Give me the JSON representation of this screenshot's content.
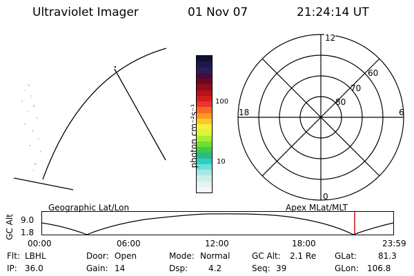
{
  "header": {
    "title": "Ultraviolet Imager",
    "date": "01 Nov 07",
    "time": "21:24:14 UT"
  },
  "colorbar": {
    "unit_label": "photon cm⁻²s⁻¹",
    "ticks": [
      "100",
      "10"
    ],
    "colors": [
      "#111133",
      "#1a1a4a",
      "#2a2058",
      "#4a0a3a",
      "#6e0626",
      "#930d1a",
      "#b5121a",
      "#d41e1e",
      "#ee3333",
      "#f86a26",
      "#fb9a1e",
      "#fbc826",
      "#f5ee3c",
      "#ddf239",
      "#a6ee2e",
      "#6ee032",
      "#3ecc46",
      "#2eb888",
      "#28d2c2",
      "#6be0d8",
      "#a8e8e4",
      "#cfeeea",
      "#e6f3f1",
      "#f4f8f7"
    ]
  },
  "polar_plot": {
    "clock_labels": {
      "top": "12",
      "left": "18",
      "right": "6",
      "bottom": "0"
    },
    "lat_labels": [
      "60",
      "70",
      "80"
    ]
  },
  "timeline": {
    "left_label": "Geographic Lat/Lon",
    "right_label": "Apex MLat/MLT",
    "axis_title": "GC Alt",
    "y_ticks": [
      "9.0",
      "1.8"
    ],
    "x_ticks": [
      "00:00",
      "06:00",
      "12:00",
      "18:00",
      "23:59"
    ],
    "marker_color": "#cc0000"
  },
  "status": {
    "flt_label": "Flt:",
    "flt_value": "LBHL",
    "ip_label": "IP:",
    "ip_value": "36.0",
    "door_label": "Door:",
    "door_value": "Open",
    "gain_label": "Gain:",
    "gain_value": "14",
    "mode_label": "Mode:",
    "mode_value": "Normal",
    "dsp_label": "Dsp:",
    "dsp_value": "4.2",
    "gcalt_label": "GC Alt:",
    "gcalt_value": "2.1 Re",
    "seq_label": "Seq:",
    "seq_value": "39",
    "glat_label": "GLat:",
    "glat_value": "81.3",
    "glon_label": "GLon:",
    "glon_value": "106.8"
  }
}
